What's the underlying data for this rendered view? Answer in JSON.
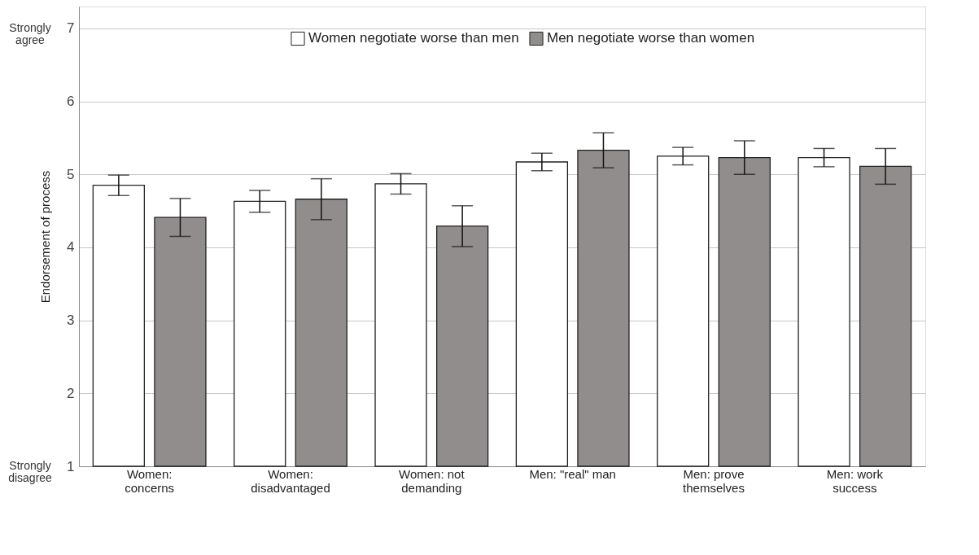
{
  "chart_data": {
    "type": "bar",
    "ylabel": "Endorsement of process",
    "categories": [
      "Women:\nconcerns",
      "Women:\ndisadvantaged",
      "Women: not\ndemanding",
      "Men: \"real\" man",
      "Men: prove\nthemselves",
      "Men: work\nsuccess"
    ],
    "series": [
      {
        "name": "Women negotiate worse than men",
        "color": "#ffffff",
        "values": [
          4.85,
          4.63,
          4.87,
          5.17,
          5.25,
          5.23
        ],
        "errors": [
          0.14,
          0.15,
          0.14,
          0.12,
          0.12,
          0.125
        ]
      },
      {
        "name": "Men negotiate worse than women",
        "color": "#918d8d",
        "values": [
          4.41,
          4.66,
          4.29,
          5.33,
          5.23,
          5.11
        ],
        "errors": [
          0.26,
          0.28,
          0.28,
          0.24,
          0.23,
          0.245
        ]
      }
    ],
    "ylim": [
      1,
      7.3
    ],
    "yticks": [
      1,
      2,
      3,
      4,
      5,
      6,
      7
    ],
    "annotations": [
      "Strongly\nagree",
      "Strongly\ndisagree"
    ],
    "grid": "y",
    "legend": "top"
  }
}
